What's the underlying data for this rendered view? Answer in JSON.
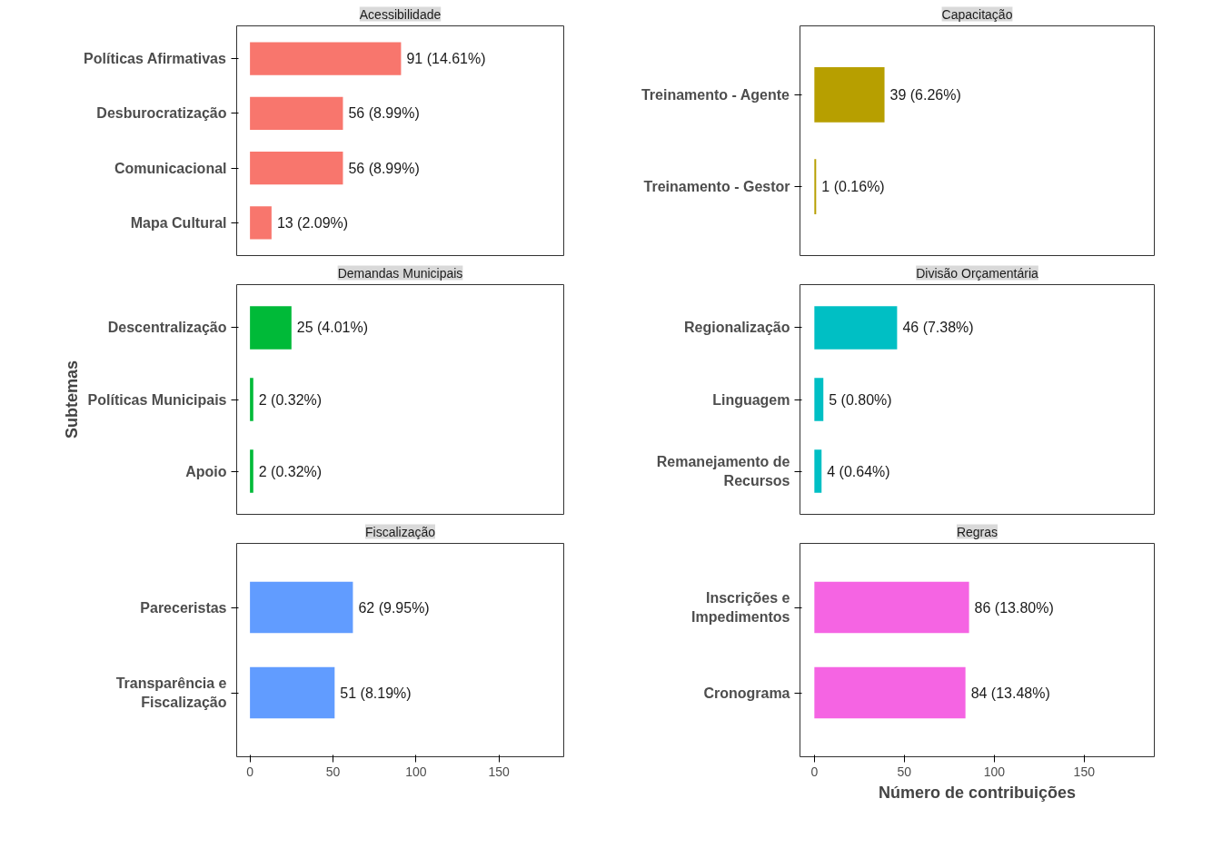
{
  "chart_data": [
    {
      "type": "bar",
      "orientation": "horizontal",
      "title": "Acessibilidade",
      "categories": [
        "Políticas Afirmativas",
        "Desburocratização",
        "Comunicacional",
        "Mapa Cultural"
      ],
      "values": [
        91,
        56,
        56,
        13
      ],
      "color": "#f8766d",
      "value_labels": [
        "91 (14.61%)",
        "56 (8.99%)",
        "56 (8.99%)",
        "13 (2.09%)"
      ],
      "xlim": [
        -8,
        189
      ],
      "xticks": [
        0,
        50,
        100,
        150
      ],
      "tick_labels": "y",
      "grid": false
    },
    {
      "type": "bar",
      "orientation": "horizontal",
      "title": "Capacitação",
      "categories": [
        "Treinamento - Agente",
        "Treinamento - Gestor"
      ],
      "values": [
        39,
        1
      ],
      "color": "#b79f00",
      "value_labels": [
        "39 (6.26%)",
        "1 (0.16%)"
      ],
      "xlim": [
        -8,
        189
      ],
      "xticks": [
        0,
        50,
        100,
        150
      ],
      "tick_labels": "y",
      "grid": false
    },
    {
      "type": "bar",
      "orientation": "horizontal",
      "title": "Demandas Municipais",
      "ylabel": "Subtemas",
      "categories": [
        "Descentralização",
        "Políticas Municipais",
        "Apoio"
      ],
      "values": [
        25,
        2,
        2
      ],
      "color": "#00ba38",
      "value_labels": [
        "25 (4.01%)",
        "2 (0.32%)",
        "2 (0.32%)"
      ],
      "xlim": [
        -8,
        189
      ],
      "xticks": [
        0,
        50,
        100,
        150
      ],
      "tick_labels": "y",
      "grid": false
    },
    {
      "type": "bar",
      "orientation": "horizontal",
      "title": "Divisão Orçamentária",
      "categories": [
        "Regionalização",
        "Linguagem",
        "Remanejamento de Recursos"
      ],
      "values": [
        46,
        5,
        4
      ],
      "color": "#00bfc4",
      "value_labels": [
        "46 (7.38%)",
        "5 (0.80%)",
        "4 (0.64%)"
      ],
      "xlim": [
        -8,
        189
      ],
      "xticks": [
        0,
        50,
        100,
        150
      ],
      "tick_labels": "y",
      "grid": false
    },
    {
      "type": "bar",
      "orientation": "horizontal",
      "title": "Fiscalização",
      "categories": [
        "Pareceristas",
        "Transparência e Fiscalização"
      ],
      "values": [
        62,
        51
      ],
      "color": "#619cff",
      "value_labels": [
        "62 (9.95%)",
        "51 (8.19%)"
      ],
      "xlim": [
        -8,
        189
      ],
      "xticks": [
        0,
        50,
        100,
        150
      ],
      "grid": false
    },
    {
      "type": "bar",
      "orientation": "horizontal",
      "title": "Regras",
      "xlabel": "Número de contribuições",
      "categories": [
        "Inscrições e Impedimentos",
        "Cronograma"
      ],
      "values": [
        86,
        84
      ],
      "color": "#f564e3",
      "value_labels": [
        "86 (13.80%)",
        "84 (13.48%)"
      ],
      "xlim": [
        -8,
        189
      ],
      "xticks": [
        0,
        50,
        100,
        150
      ],
      "grid": false
    }
  ]
}
